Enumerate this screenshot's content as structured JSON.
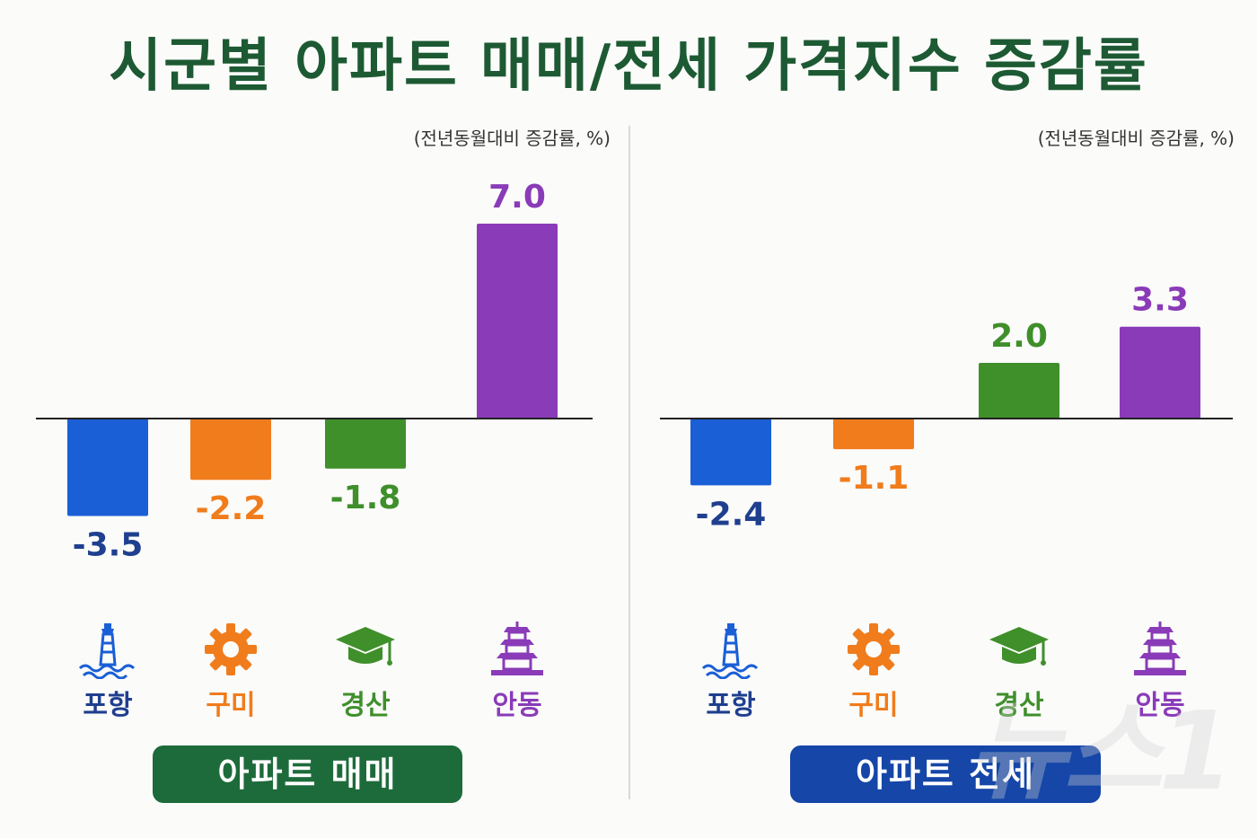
{
  "title": "시군별 아파트 매매/전세 가격지수 증감률",
  "colors": {
    "title": "#1d5a33",
    "pohang": "#1a5fd6",
    "gumi": "#f07c1c",
    "gyeongsan": "#3f8f2b",
    "andong": "#8a3bb8",
    "pohang_text": "#1f3f8f",
    "sale_badge": "#1d6b3a",
    "jeonse_badge": "#1546a8"
  },
  "watermark": "뉴스1",
  "chart_data": [
    {
      "type": "bar",
      "unit_note": "(전년동월대비 증감률, %)",
      "badge": "아파트 매매",
      "categories": [
        "포항",
        "구미",
        "경산",
        "안동"
      ],
      "icons": [
        "lighthouse-icon",
        "gear-icon",
        "graduation-cap-icon",
        "pagoda-icon"
      ],
      "values": [
        -3.5,
        -2.2,
        -1.8,
        7.0
      ],
      "value_labels": [
        "-3.5",
        "-2.2",
        "-1.8",
        "7.0"
      ],
      "ylim": [
        -3.5,
        7.0
      ],
      "grid": false
    },
    {
      "type": "bar",
      "unit_note": "(전년동월대비 증감률, %)",
      "badge": "아파트 전세",
      "categories": [
        "포항",
        "구미",
        "경산",
        "안동"
      ],
      "icons": [
        "lighthouse-icon",
        "gear-icon",
        "graduation-cap-icon",
        "pagoda-icon"
      ],
      "values": [
        -2.4,
        -1.1,
        2.0,
        3.3
      ],
      "value_labels": [
        "-2.4",
        "-1.1",
        "2.0",
        "3.3"
      ],
      "ylim": [
        -2.4,
        3.3
      ],
      "grid": false
    }
  ]
}
